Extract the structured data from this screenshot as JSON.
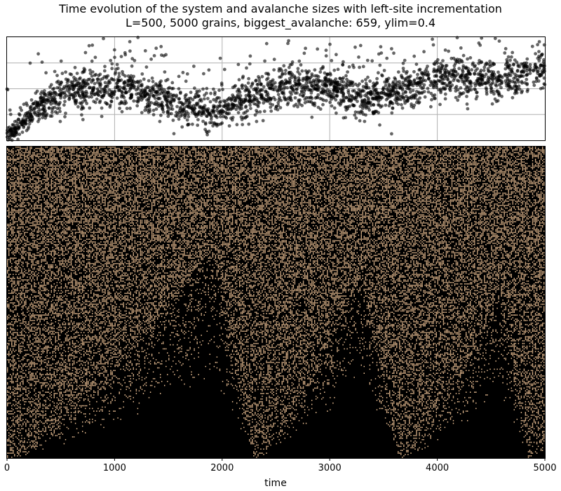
{
  "title_line1": "Time evolution of the system and avalanche sizes with left-site incrementation",
  "title_line2": "L=500, 5000 grains, biggest_avalanche: 659, ylim=0.4",
  "chart_data": [
    {
      "type": "scatter",
      "panel": "avalanche sizes",
      "grid": true,
      "x_range": [
        0,
        5000
      ],
      "points": {
        "count": 5000,
        "color": "#000000",
        "alpha": 0.6,
        "trend": [
          {
            "t": 0,
            "level": 0.02
          },
          {
            "t": 200,
            "level": 0.25
          },
          {
            "t": 500,
            "level": 0.45
          },
          {
            "t": 800,
            "level": 0.52
          },
          {
            "t": 1200,
            "level": 0.5
          },
          {
            "t": 1600,
            "level": 0.33
          },
          {
            "t": 1900,
            "level": 0.28
          },
          {
            "t": 2200,
            "level": 0.38
          },
          {
            "t": 2600,
            "level": 0.55
          },
          {
            "t": 3000,
            "level": 0.5
          },
          {
            "t": 3300,
            "level": 0.38
          },
          {
            "t": 3700,
            "level": 0.5
          },
          {
            "t": 4100,
            "level": 0.62
          },
          {
            "t": 4600,
            "level": 0.58
          },
          {
            "t": 5000,
            "level": 0.72
          }
        ]
      }
    },
    {
      "type": "heatmap",
      "panel": "system state over time",
      "xlabel": "time",
      "x_range": [
        0,
        5000
      ],
      "xticks": [
        "0",
        "1000",
        "2000",
        "3000",
        "4000",
        "5000"
      ],
      "background_color": "#000000",
      "site_color": "#f5c89a",
      "cycles": [
        {
          "start": 0,
          "peak_time": 1900,
          "peak_fraction": 0.68
        },
        {
          "start": 2300,
          "peak_time": 3300,
          "peak_fraction": 0.59
        },
        {
          "start": 3650,
          "peak_time": 4580,
          "peak_fraction": 0.52
        },
        {
          "start": 4850,
          "peak_time": 5000,
          "peak_fraction": 0.05
        }
      ]
    }
  ]
}
